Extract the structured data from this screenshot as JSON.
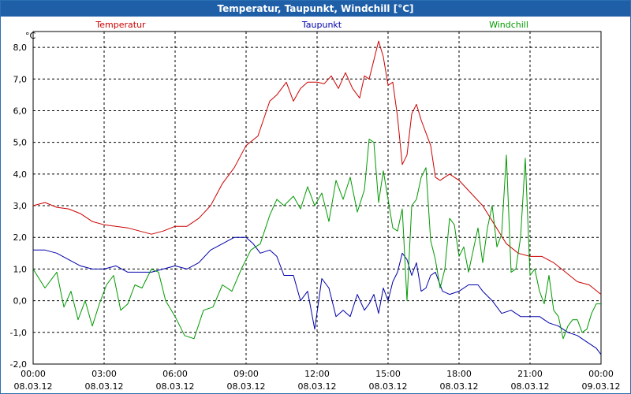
{
  "window": {
    "title": "Temperatur, Taupunkt, Windchill [°C]"
  },
  "chart_data": {
    "type": "line",
    "title": "Temperatur, Taupunkt, Windchill [°C]",
    "ylabel": "°C",
    "ylim": [
      -2.0,
      8.5
    ],
    "yticks": [
      -2.0,
      -1.0,
      0.0,
      1.0,
      2.0,
      3.0,
      4.0,
      5.0,
      6.0,
      7.0,
      8.0
    ],
    "ytick_labels": [
      "-2,0",
      "-1,0",
      "0,0",
      "1,0",
      "2,0",
      "3,0",
      "4,0",
      "5,0",
      "6,0",
      "7,0",
      "8,0"
    ],
    "xlim": [
      0,
      24
    ],
    "xticks": [
      0,
      3,
      6,
      9,
      12,
      15,
      18,
      21,
      24
    ],
    "xtick_times": [
      "00:00",
      "03:00",
      "06:00",
      "09:00",
      "12:00",
      "15:00",
      "18:00",
      "21:00",
      "00:00"
    ],
    "xtick_dates": [
      "08.03.12",
      "08.03.12",
      "08.03.12",
      "08.03.12",
      "08.03.12",
      "08.03.12",
      "08.03.12",
      "08.03.12",
      "09.03.12"
    ],
    "grid": true,
    "legend_position": "top",
    "series": [
      {
        "name": "Temperatur",
        "color": "#cc0000",
        "x": [
          0,
          0.5,
          1,
          1.5,
          2,
          2.5,
          3,
          3.5,
          4,
          4.5,
          5,
          5.5,
          6,
          6.5,
          7,
          7.5,
          8,
          8.5,
          9,
          9.5,
          10,
          10.3,
          10.7,
          11,
          11.3,
          11.6,
          12,
          12.3,
          12.6,
          12.9,
          13.2,
          13.5,
          13.8,
          14,
          14.2,
          14.4,
          14.6,
          14.8,
          15,
          15.2,
          15.4,
          15.6,
          15.8,
          16,
          16.2,
          16.4,
          16.6,
          16.8,
          17,
          17.2,
          17.6,
          18,
          18.5,
          19,
          19.5,
          20,
          20.5,
          21,
          21.5,
          22,
          22.5,
          23,
          23.5,
          24
        ],
        "values": [
          3.0,
          3.1,
          2.95,
          2.9,
          2.75,
          2.5,
          2.4,
          2.35,
          2.3,
          2.2,
          2.1,
          2.2,
          2.35,
          2.35,
          2.6,
          3.0,
          3.7,
          4.2,
          4.9,
          5.2,
          6.3,
          6.5,
          6.9,
          6.3,
          6.7,
          6.9,
          6.9,
          6.85,
          7.1,
          6.7,
          7.2,
          6.7,
          6.4,
          7.1,
          7.0,
          7.6,
          8.2,
          7.7,
          6.8,
          6.9,
          5.8,
          4.3,
          4.6,
          5.9,
          6.2,
          5.7,
          5.3,
          4.9,
          3.9,
          3.8,
          4.0,
          3.8,
          3.4,
          3.0,
          2.4,
          1.8,
          1.5,
          1.4,
          1.4,
          1.2,
          0.9,
          0.6,
          0.5,
          0.2
        ]
      },
      {
        "name": "Taupunkt",
        "color": "#0000aa",
        "x": [
          0,
          0.5,
          1,
          1.5,
          2,
          2.5,
          3,
          3.5,
          4,
          4.5,
          5,
          5.5,
          6,
          6.5,
          7,
          7.5,
          8,
          8.5,
          9,
          9.3,
          9.6,
          10,
          10.3,
          10.6,
          11,
          11.3,
          11.6,
          11.9,
          12.2,
          12.5,
          12.8,
          13.1,
          13.4,
          13.7,
          14,
          14.2,
          14.4,
          14.6,
          14.8,
          15,
          15.2,
          15.4,
          15.6,
          15.8,
          16,
          16.2,
          16.4,
          16.6,
          16.8,
          17,
          17.3,
          17.6,
          18,
          18.4,
          18.8,
          19,
          19.4,
          19.8,
          20.2,
          20.6,
          21,
          21.4,
          21.8,
          22.2,
          22.6,
          23,
          23.4,
          23.8,
          24
        ],
        "values": [
          1.6,
          1.6,
          1.5,
          1.3,
          1.1,
          1.0,
          1.0,
          1.1,
          0.9,
          0.9,
          0.9,
          1.0,
          1.1,
          1.0,
          1.2,
          1.6,
          1.8,
          2.0,
          2.0,
          1.8,
          1.5,
          1.6,
          1.4,
          0.8,
          0.8,
          0.0,
          0.3,
          -0.9,
          0.7,
          0.4,
          -0.5,
          -0.3,
          -0.5,
          0.2,
          -0.3,
          -0.1,
          0.2,
          -0.4,
          0.4,
          0.0,
          0.6,
          0.9,
          1.5,
          1.3,
          0.8,
          1.2,
          0.3,
          0.4,
          0.8,
          0.9,
          0.3,
          0.2,
          0.3,
          0.5,
          0.5,
          0.3,
          0.0,
          -0.4,
          -0.3,
          -0.5,
          -0.5,
          -0.5,
          -0.7,
          -0.8,
          -1.0,
          -1.1,
          -1.3,
          -1.5,
          -1.7
        ]
      },
      {
        "name": "Windchill",
        "color": "#009900",
        "x": [
          0,
          0.5,
          1,
          1.3,
          1.6,
          1.9,
          2.2,
          2.5,
          2.8,
          3.1,
          3.4,
          3.7,
          4,
          4.3,
          4.6,
          5,
          5.3,
          5.6,
          6,
          6.4,
          6.8,
          7.2,
          7.6,
          8,
          8.4,
          8.8,
          9.2,
          9.6,
          10,
          10.3,
          10.6,
          11,
          11.3,
          11.6,
          11.9,
          12.2,
          12.5,
          12.8,
          13.1,
          13.4,
          13.7,
          14,
          14.2,
          14.4,
          14.6,
          14.8,
          15,
          15.2,
          15.4,
          15.6,
          15.8,
          16,
          16.2,
          16.4,
          16.6,
          16.8,
          17,
          17.2,
          17.4,
          17.6,
          17.8,
          18,
          18.2,
          18.4,
          18.6,
          18.8,
          19,
          19.2,
          19.4,
          19.6,
          19.8,
          20,
          20.2,
          20.4,
          20.6,
          20.8,
          21,
          21.2,
          21.4,
          21.6,
          21.8,
          22,
          22.2,
          22.4,
          22.6,
          22.8,
          23,
          23.2,
          23.4,
          23.6,
          23.8,
          24
        ],
        "values": [
          1.0,
          0.4,
          0.9,
          -0.2,
          0.3,
          -0.6,
          0.0,
          -0.8,
          -0.1,
          0.5,
          0.8,
          -0.3,
          -0.1,
          0.5,
          0.4,
          1.0,
          0.9,
          0.0,
          -0.5,
          -1.1,
          -1.2,
          -0.3,
          -0.2,
          0.5,
          0.3,
          1.0,
          1.6,
          1.8,
          2.7,
          3.2,
          3.0,
          3.3,
          2.9,
          3.6,
          3.0,
          3.4,
          2.5,
          3.8,
          3.2,
          3.9,
          2.8,
          3.5,
          5.1,
          5.0,
          3.1,
          4.1,
          3.2,
          2.3,
          2.2,
          2.9,
          0.0,
          3.0,
          3.2,
          3.9,
          4.2,
          1.9,
          1.3,
          0.4,
          1.0,
          2.6,
          2.4,
          1.4,
          1.7,
          0.9,
          1.6,
          2.3,
          1.2,
          2.3,
          3.0,
          1.7,
          2.1,
          4.6,
          0.9,
          1.0,
          2.0,
          4.5,
          0.8,
          1.0,
          0.3,
          -0.1,
          0.8,
          -0.3,
          -0.5,
          -1.2,
          -0.8,
          -0.6,
          -0.6,
          -1.0,
          -0.9,
          -0.4,
          -0.1,
          -0.1
        ]
      }
    ]
  }
}
